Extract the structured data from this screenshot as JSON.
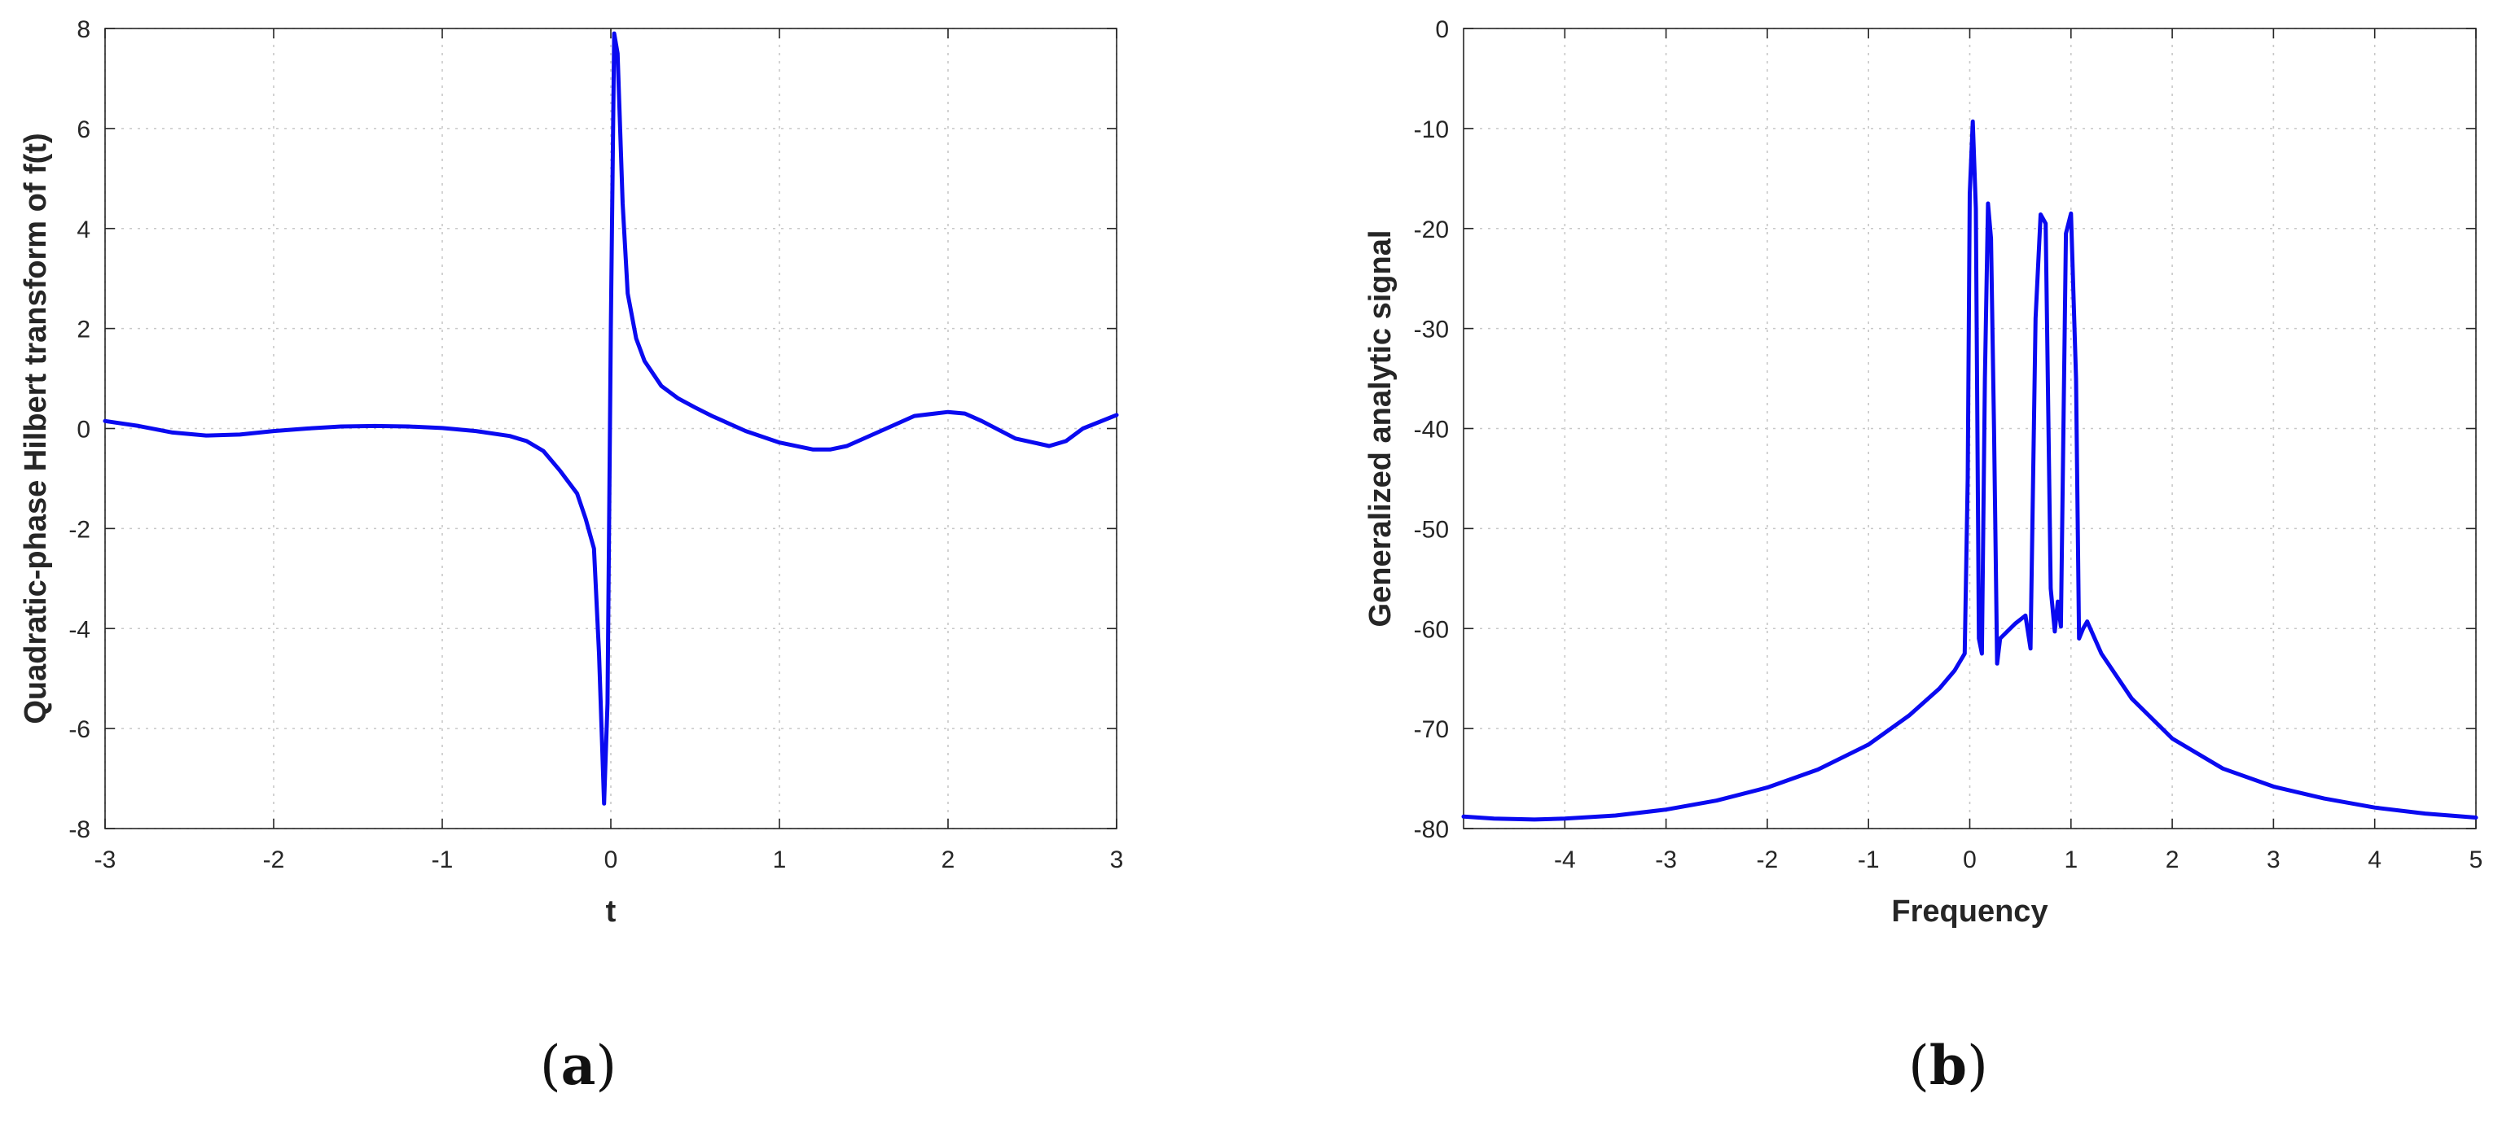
{
  "chart_data": [
    {
      "type": "line",
      "panel": "a",
      "panel_label": "(a)",
      "xlabel": "t",
      "ylabel": "Quadratic-phase Hilbert transform of f(t)",
      "xlim": [
        -3,
        3
      ],
      "ylim": [
        -8,
        8
      ],
      "xticks": [
        -3,
        -2,
        -1,
        0,
        1,
        2,
        3
      ],
      "xtick_labels": [
        "-3",
        "-2",
        "-1",
        "0",
        "1",
        "2",
        "3"
      ],
      "yticks": [
        -8,
        -6,
        -4,
        -2,
        0,
        2,
        4,
        6,
        8
      ],
      "ytick_labels": [
        "-8",
        "-6",
        "-4",
        "-2",
        "0",
        "2",
        "4",
        "6",
        "8"
      ],
      "grid": true,
      "series": [
        {
          "color": "#0a0af0",
          "x": [
            -3.0,
            -2.8,
            -2.6,
            -2.4,
            -2.2,
            -2.0,
            -1.8,
            -1.6,
            -1.4,
            -1.2,
            -1.0,
            -0.8,
            -0.6,
            -0.5,
            -0.4,
            -0.3,
            -0.2,
            -0.15,
            -0.1,
            -0.07,
            -0.04,
            -0.02,
            0.0,
            0.02,
            0.04,
            0.07,
            0.1,
            0.15,
            0.2,
            0.3,
            0.4,
            0.5,
            0.6,
            0.8,
            1.0,
            1.2,
            1.3,
            1.4,
            1.6,
            1.8,
            2.0,
            2.1,
            2.2,
            2.4,
            2.6,
            2.7,
            2.8,
            3.0
          ],
          "y": [
            0.15,
            0.05,
            -0.08,
            -0.14,
            -0.12,
            -0.05,
            0.0,
            0.04,
            0.05,
            0.04,
            0.01,
            -0.05,
            -0.15,
            -0.25,
            -0.45,
            -0.85,
            -1.3,
            -1.8,
            -2.4,
            -4.5,
            -7.5,
            -5.5,
            2.0,
            7.9,
            7.5,
            4.5,
            2.7,
            1.8,
            1.35,
            0.85,
            0.6,
            0.42,
            0.25,
            -0.05,
            -0.28,
            -0.42,
            -0.42,
            -0.35,
            -0.05,
            0.25,
            0.33,
            0.3,
            0.15,
            -0.2,
            -0.35,
            -0.25,
            0.0,
            0.27
          ]
        }
      ]
    },
    {
      "type": "line",
      "panel": "b",
      "panel_label": "(b)",
      "xlabel": "Frequency",
      "ylabel": "Generalized analytic signal",
      "xlim": [
        -5,
        5
      ],
      "ylim": [
        -80,
        0
      ],
      "xticks": [
        -4,
        -3,
        -2,
        -1,
        0,
        1,
        2,
        3,
        4,
        5
      ],
      "xtick_labels": [
        "-4",
        "-3",
        "-2",
        "-1",
        "0",
        "1",
        "2",
        "3",
        "4",
        "5"
      ],
      "yticks": [
        -80,
        -70,
        -60,
        -50,
        -40,
        -30,
        -20,
        -10,
        0
      ],
      "ytick_labels": [
        "-80",
        "-70",
        "-60",
        "-50",
        "-40",
        "-30",
        "-20",
        "-10",
        "0"
      ],
      "grid": true,
      "series": [
        {
          "color": "#0a0af0",
          "x": [
            -5.0,
            -4.7,
            -4.3,
            -4.0,
            -3.5,
            -3.0,
            -2.5,
            -2.0,
            -1.5,
            -1.0,
            -0.6,
            -0.3,
            -0.15,
            -0.05,
            -0.02,
            0.0,
            0.03,
            0.06,
            0.09,
            0.12,
            0.15,
            0.18,
            0.21,
            0.24,
            0.27,
            0.3,
            0.35,
            0.45,
            0.55,
            0.6,
            0.65,
            0.7,
            0.75,
            0.8,
            0.84,
            0.87,
            0.9,
            0.95,
            1.0,
            1.05,
            1.08,
            1.12,
            1.16,
            1.3,
            1.6,
            2.0,
            2.5,
            3.0,
            3.5,
            4.0,
            4.5,
            5.0
          ],
          "y": [
            -78.8,
            -79.0,
            -79.1,
            -79.0,
            -78.7,
            -78.1,
            -77.2,
            -75.9,
            -74.1,
            -71.6,
            -68.7,
            -66.0,
            -64.2,
            -62.5,
            -45.0,
            -16.5,
            -9.3,
            -18.0,
            -61.0,
            -62.5,
            -35.0,
            -17.5,
            -21.0,
            -40.0,
            -63.5,
            -61.0,
            -60.5,
            -59.5,
            -58.7,
            -62.0,
            -29.0,
            -18.6,
            -19.5,
            -56.0,
            -60.3,
            -57.3,
            -59.8,
            -20.5,
            -18.5,
            -35.0,
            -61.0,
            -60.0,
            -59.3,
            -62.5,
            -67.0,
            -71.0,
            -74.0,
            -75.8,
            -77.0,
            -77.9,
            -78.5,
            -78.9
          ]
        }
      ]
    }
  ]
}
